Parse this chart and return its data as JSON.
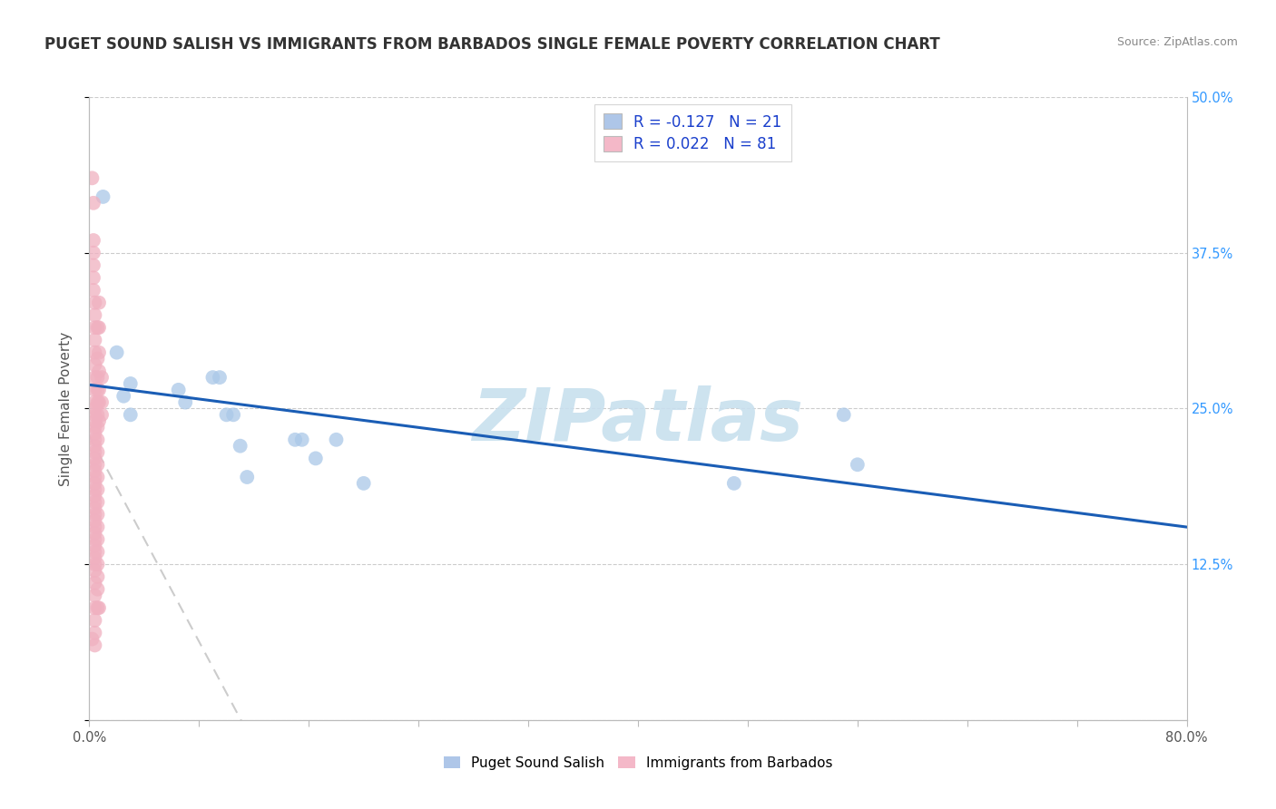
{
  "title": "PUGET SOUND SALISH VS IMMIGRANTS FROM BARBADOS SINGLE FEMALE POVERTY CORRELATION CHART",
  "source": "Source: ZipAtlas.com",
  "ylabel": "Single Female Poverty",
  "xlim": [
    0,
    0.8
  ],
  "ylim": [
    0,
    0.5
  ],
  "watermark_text": "ZIPatlas",
  "legend_entries": [
    {
      "label_prefix": "R = ",
      "R_val": "-0.127",
      "label_mid": "   N = ",
      "N_val": "21",
      "color": "#aec6e8"
    },
    {
      "label_prefix": "R = ",
      "R_val": "0.022",
      "label_mid": "   N = ",
      "N_val": "81",
      "color": "#f4b8c8"
    }
  ],
  "series": [
    {
      "name": "Puget Sound Salish",
      "color": "#aac8e8",
      "line_color": "#1a5db5",
      "line_style": "solid",
      "line_width": 2.2,
      "points": [
        [
          0.01,
          0.42
        ],
        [
          0.02,
          0.295
        ],
        [
          0.025,
          0.26
        ],
        [
          0.03,
          0.27
        ],
        [
          0.03,
          0.245
        ],
        [
          0.065,
          0.265
        ],
        [
          0.07,
          0.255
        ],
        [
          0.09,
          0.275
        ],
        [
          0.095,
          0.275
        ],
        [
          0.1,
          0.245
        ],
        [
          0.105,
          0.245
        ],
        [
          0.11,
          0.22
        ],
        [
          0.115,
          0.195
        ],
        [
          0.15,
          0.225
        ],
        [
          0.155,
          0.225
        ],
        [
          0.165,
          0.21
        ],
        [
          0.18,
          0.225
        ],
        [
          0.2,
          0.19
        ],
        [
          0.47,
          0.19
        ],
        [
          0.55,
          0.245
        ],
        [
          0.56,
          0.205
        ]
      ]
    },
    {
      "name": "Immigrants from Barbados",
      "color": "#f0b0c0",
      "line_color": "#e88090",
      "line_style": "dashed",
      "line_width": 1.5,
      "points": [
        [
          0.002,
          0.435
        ],
        [
          0.003,
          0.415
        ],
        [
          0.003,
          0.385
        ],
        [
          0.003,
          0.375
        ],
        [
          0.003,
          0.365
        ],
        [
          0.003,
          0.355
        ],
        [
          0.003,
          0.345
        ],
        [
          0.004,
          0.335
        ],
        [
          0.004,
          0.325
        ],
        [
          0.004,
          0.315
        ],
        [
          0.004,
          0.305
        ],
        [
          0.004,
          0.295
        ],
        [
          0.004,
          0.285
        ],
        [
          0.004,
          0.275
        ],
        [
          0.004,
          0.265
        ],
        [
          0.004,
          0.255
        ],
        [
          0.004,
          0.25
        ],
        [
          0.004,
          0.245
        ],
        [
          0.004,
          0.24
        ],
        [
          0.004,
          0.235
        ],
        [
          0.004,
          0.23
        ],
        [
          0.004,
          0.225
        ],
        [
          0.004,
          0.22
        ],
        [
          0.004,
          0.215
        ],
        [
          0.004,
          0.21
        ],
        [
          0.004,
          0.205
        ],
        [
          0.004,
          0.2
        ],
        [
          0.004,
          0.195
        ],
        [
          0.004,
          0.19
        ],
        [
          0.004,
          0.185
        ],
        [
          0.004,
          0.18
        ],
        [
          0.004,
          0.175
        ],
        [
          0.004,
          0.17
        ],
        [
          0.004,
          0.165
        ],
        [
          0.004,
          0.16
        ],
        [
          0.004,
          0.155
        ],
        [
          0.004,
          0.15
        ],
        [
          0.004,
          0.145
        ],
        [
          0.004,
          0.14
        ],
        [
          0.004,
          0.135
        ],
        [
          0.004,
          0.13
        ],
        [
          0.004,
          0.125
        ],
        [
          0.004,
          0.12
        ],
        [
          0.004,
          0.11
        ],
        [
          0.004,
          0.1
        ],
        [
          0.004,
          0.09
        ],
        [
          0.004,
          0.08
        ],
        [
          0.004,
          0.07
        ],
        [
          0.004,
          0.06
        ],
        [
          0.006,
          0.315
        ],
        [
          0.006,
          0.29
        ],
        [
          0.006,
          0.275
        ],
        [
          0.006,
          0.265
        ],
        [
          0.006,
          0.255
        ],
        [
          0.006,
          0.245
        ],
        [
          0.006,
          0.235
        ],
        [
          0.006,
          0.225
        ],
        [
          0.006,
          0.215
        ],
        [
          0.006,
          0.205
        ],
        [
          0.006,
          0.195
        ],
        [
          0.006,
          0.185
        ],
        [
          0.006,
          0.175
        ],
        [
          0.006,
          0.165
        ],
        [
          0.006,
          0.155
        ],
        [
          0.006,
          0.145
        ],
        [
          0.006,
          0.135
        ],
        [
          0.006,
          0.125
        ],
        [
          0.006,
          0.115
        ],
        [
          0.006,
          0.105
        ],
        [
          0.006,
          0.09
        ],
        [
          0.007,
          0.335
        ],
        [
          0.007,
          0.315
        ],
        [
          0.007,
          0.295
        ],
        [
          0.007,
          0.28
        ],
        [
          0.007,
          0.265
        ],
        [
          0.007,
          0.255
        ],
        [
          0.007,
          0.24
        ],
        [
          0.007,
          0.09
        ],
        [
          0.009,
          0.275
        ],
        [
          0.009,
          0.255
        ],
        [
          0.009,
          0.245
        ],
        [
          0.002,
          0.065
        ]
      ]
    }
  ],
  "background_color": "#ffffff",
  "grid_color": "#cccccc",
  "title_fontsize": 12,
  "axis_fontsize": 11,
  "tick_fontsize": 10.5,
  "watermark_color": "#c8e0ee",
  "watermark_fontsize": 58
}
